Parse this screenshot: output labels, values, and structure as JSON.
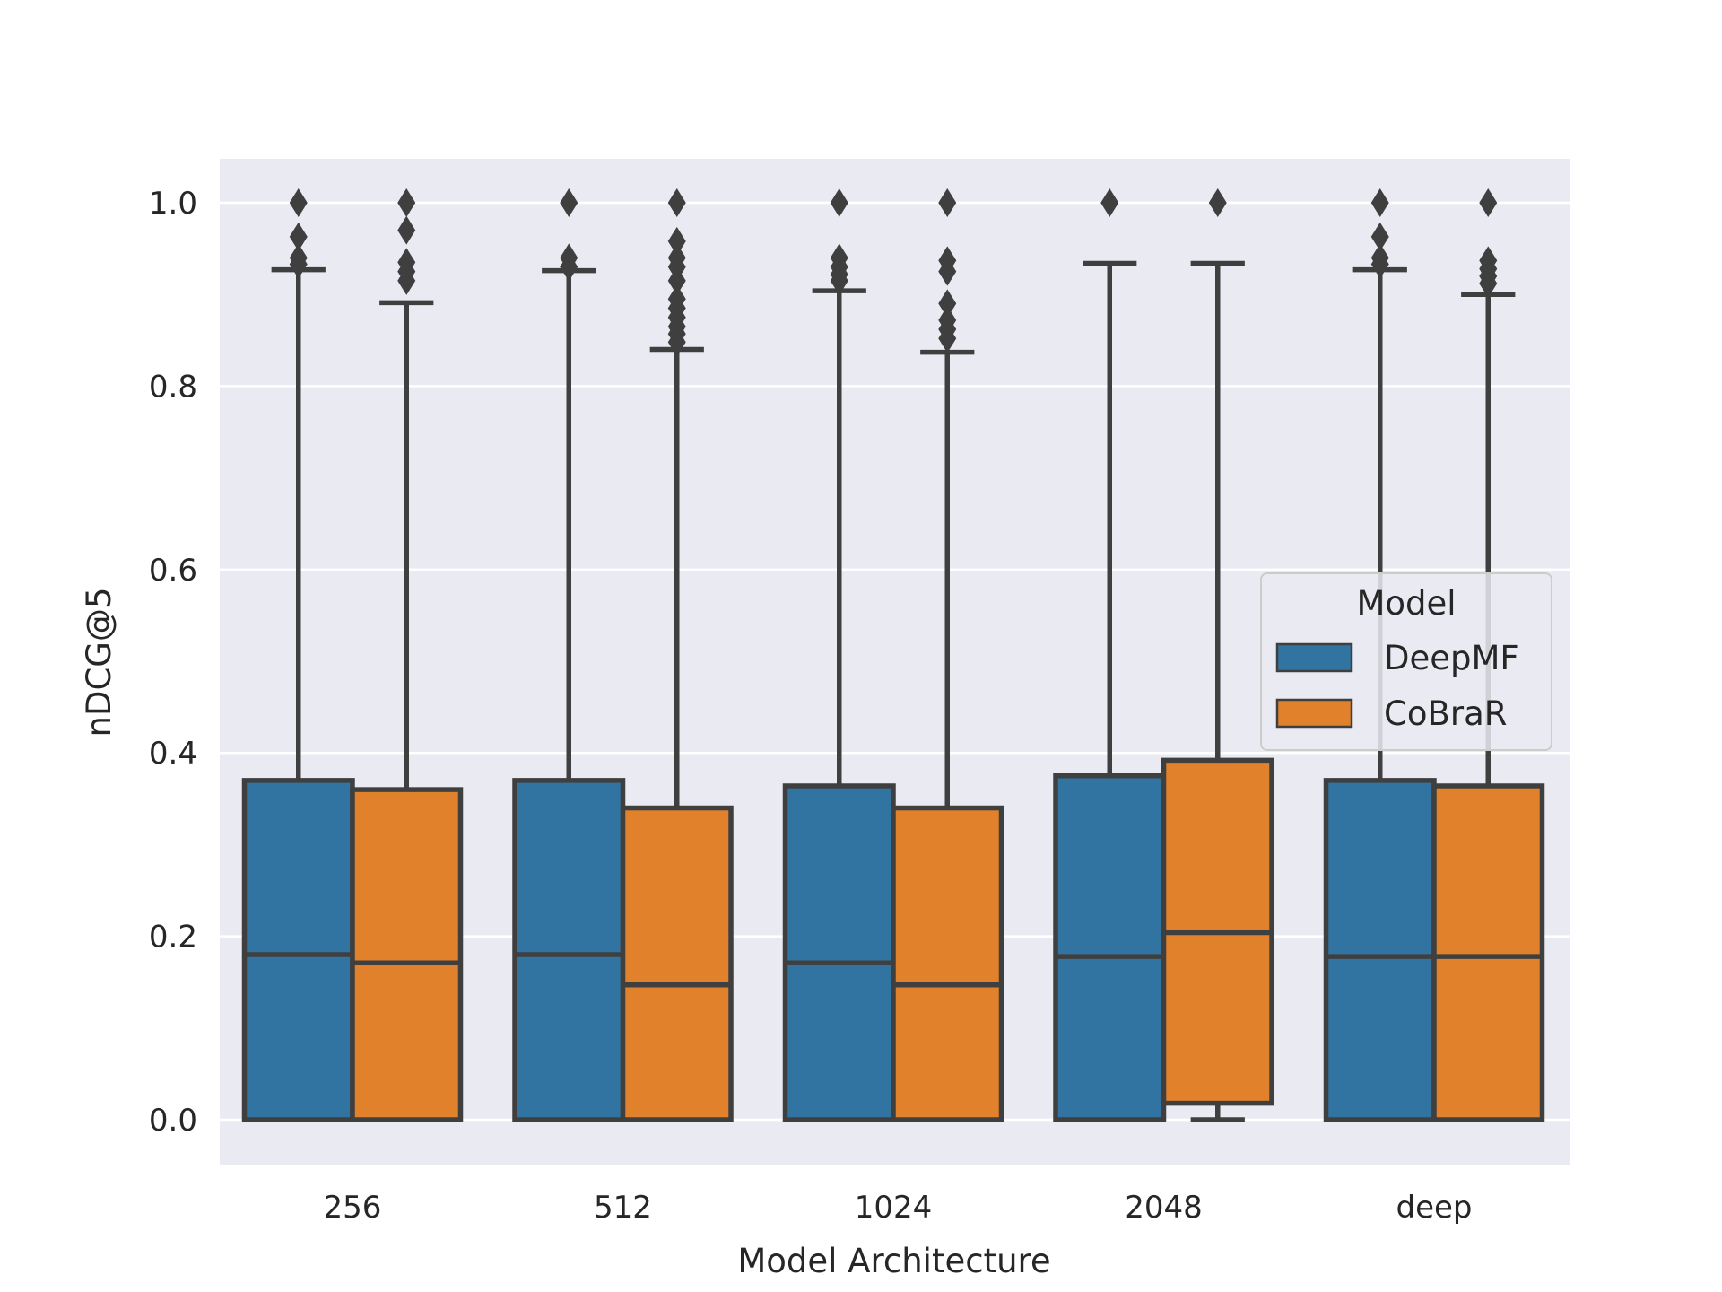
{
  "chart_data": {
    "type": "box",
    "xlabel": "Model Architecture",
    "ylabel": "nDCG@5",
    "ylim": [
      -0.05,
      1.05
    ],
    "yticks": [
      "0.0",
      "0.2",
      "0.4",
      "0.6",
      "0.8",
      "1.0"
    ],
    "categories": [
      "256",
      "512",
      "1024",
      "2048",
      "deep"
    ],
    "grid": true,
    "legend": {
      "title": "Model",
      "placement": "center-right"
    },
    "series": [
      {
        "name": "DeepMF",
        "color": "#3274a1",
        "boxes": [
          {
            "whislo": 0.0,
            "q1": 0.0,
            "med": 0.18,
            "q3": 0.37,
            "whishi": 0.927,
            "fliers": [
              0.933,
              0.94,
              0.963,
              1.0
            ]
          },
          {
            "whislo": 0.0,
            "q1": 0.0,
            "med": 0.18,
            "q3": 0.37,
            "whishi": 0.926,
            "fliers": [
              0.93,
              0.94,
              1.0
            ]
          },
          {
            "whislo": 0.0,
            "q1": 0.0,
            "med": 0.171,
            "q3": 0.364,
            "whishi": 0.904,
            "fliers": [
              0.915,
              0.922,
              0.93,
              0.94,
              1.0
            ]
          },
          {
            "whislo": 0.0,
            "q1": 0.0,
            "med": 0.178,
            "q3": 0.375,
            "whishi": 0.934,
            "fliers": [
              1.0
            ]
          },
          {
            "whislo": 0.0,
            "q1": 0.0,
            "med": 0.178,
            "q3": 0.37,
            "whishi": 0.927,
            "fliers": [
              0.933,
              0.94,
              0.963,
              1.0
            ]
          }
        ]
      },
      {
        "name": "CoBraR",
        "color": "#e1812c",
        "boxes": [
          {
            "whislo": 0.0,
            "q1": 0.0,
            "med": 0.171,
            "q3": 0.36,
            "whishi": 0.891,
            "fliers": [
              0.915,
              0.925,
              0.935,
              0.97,
              1.0
            ]
          },
          {
            "whislo": 0.0,
            "q1": 0.0,
            "med": 0.147,
            "q3": 0.34,
            "whishi": 0.84,
            "fliers": [
              0.848,
              0.857,
              0.865,
              0.875,
              0.885,
              0.895,
              0.915,
              0.93,
              0.94,
              0.958,
              1.0
            ]
          },
          {
            "whislo": 0.0,
            "q1": 0.0,
            "med": 0.147,
            "q3": 0.34,
            "whishi": 0.837,
            "fliers": [
              0.852,
              0.862,
              0.872,
              0.89,
              0.925,
              0.937,
              1.0
            ]
          },
          {
            "whislo": 0.0,
            "q1": 0.018,
            "med": 0.204,
            "q3": 0.392,
            "whishi": 0.934,
            "fliers": [
              1.0
            ]
          },
          {
            "whislo": 0.0,
            "q1": 0.0,
            "med": 0.178,
            "q3": 0.364,
            "whishi": 0.9,
            "fliers": [
              0.912,
              0.92,
              0.928,
              0.937,
              1.0
            ]
          }
        ]
      }
    ]
  }
}
